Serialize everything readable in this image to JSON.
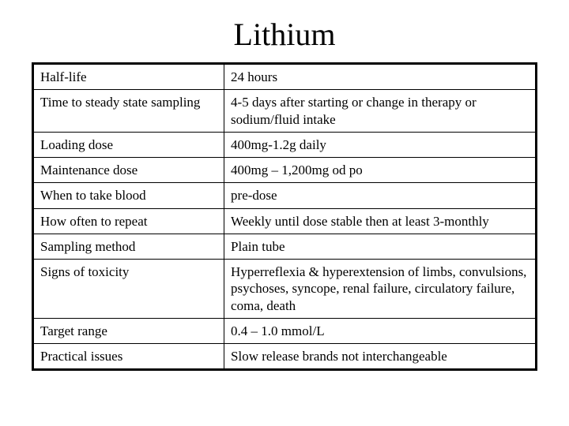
{
  "title": "Lithium",
  "table": {
    "columns": [
      "label",
      "value"
    ],
    "column_widths": [
      "38%",
      "62%"
    ],
    "rows": [
      {
        "label": "Half-life",
        "value": "24 hours"
      },
      {
        "label": "Time to steady state sampling",
        "value": "4-5 days after starting or change in therapy or sodium/fluid intake"
      },
      {
        "label": "Loading dose",
        "value": "400mg-1.2g daily"
      },
      {
        "label": "Maintenance dose",
        "value": "400mg – 1,200mg od po"
      },
      {
        "label": "When to take blood",
        "value": "pre-dose"
      },
      {
        "label": "How often to repeat",
        "value": "Weekly until dose stable then at least 3-monthly"
      },
      {
        "label": "Sampling method",
        "value": "Plain tube"
      },
      {
        "label": "Signs of toxicity",
        "value": "Hyperreflexia & hyperextension of limbs, convulsions, psychoses, syncope, renal failure, circulatory failure, coma, death"
      },
      {
        "label": "Target range",
        "value": "0.4 – 1.0 mmol/L"
      },
      {
        "label": "Practical issues",
        "value": "Slow release brands not interchangeable"
      }
    ]
  },
  "styling": {
    "font_family": "Times New Roman",
    "title_fontsize": 40,
    "cell_fontsize": 17,
    "text_color": "#000000",
    "background_color": "#ffffff",
    "outer_border_width": 3,
    "cell_border_width": 1,
    "border_color": "#000000"
  }
}
